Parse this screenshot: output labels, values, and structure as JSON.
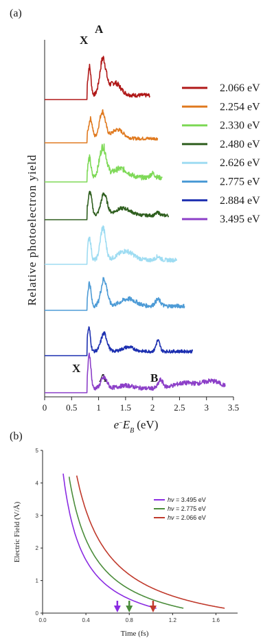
{
  "chart_data": [
    {
      "panel": "(a)",
      "type": "line",
      "xlabel_main": "e",
      "xlabel_sup": "−",
      "xlabel_var": "E",
      "xlabel_sub": "B",
      "xlabel_unit": "(eV)",
      "ylabel": "Relative photoelectron yield",
      "xlim": [
        0,
        3.5
      ],
      "x_ticks": [
        "0",
        "0.5",
        "1",
        "1.5",
        "2",
        "2.5",
        "3",
        "3.5"
      ],
      "x_tick_values": [
        0,
        0.5,
        1,
        1.5,
        2,
        2.5,
        3,
        3.5
      ],
      "peak_labels": {
        "X_top": "X",
        "A_top": "A",
        "X_bottom": "X",
        "A_bottom": "A",
        "B_bottom": "B"
      },
      "series": [
        {
          "name": "2.066 eV",
          "color": "#b01818",
          "xmax": 1.95,
          "noise": 0.05,
          "peaks": [
            [
              0.83,
              0.8,
              0.04
            ],
            [
              1.08,
              1.0,
              0.08
            ],
            [
              1.3,
              0.35,
              0.15
            ]
          ]
        },
        {
          "name": "2.254 eV",
          "color": "#e07a20",
          "xmax": 2.1,
          "noise": 0.04,
          "peaks": [
            [
              0.85,
              0.55,
              0.05
            ],
            [
              1.07,
              0.75,
              0.08
            ],
            [
              1.35,
              0.25,
              0.15
            ]
          ]
        },
        {
          "name": "2.330 eV",
          "color": "#7ed957",
          "xmax": 2.18,
          "noise": 0.06,
          "peaks": [
            [
              0.83,
              0.55,
              0.04
            ],
            [
              1.08,
              0.85,
              0.09
            ],
            [
              1.4,
              0.25,
              0.2
            ],
            [
              2.0,
              0.12,
              0.06
            ]
          ]
        },
        {
          "name": "2.480 eV",
          "color": "#2e5e1e",
          "xmax": 2.3,
          "noise": 0.04,
          "peaks": [
            [
              0.84,
              0.65,
              0.05
            ],
            [
              1.1,
              0.6,
              0.08
            ],
            [
              1.45,
              0.2,
              0.2
            ],
            [
              2.1,
              0.08,
              0.05
            ]
          ]
        },
        {
          "name": "2.626 eV",
          "color": "#9edcf2",
          "xmax": 2.45,
          "noise": 0.05,
          "peaks": [
            [
              0.83,
              0.65,
              0.04
            ],
            [
              1.08,
              0.9,
              0.07
            ],
            [
              1.5,
              0.25,
              0.2
            ],
            [
              2.1,
              0.1,
              0.06
            ]
          ]
        },
        {
          "name": "2.775 eV",
          "color": "#4d9bd6",
          "xmax": 2.6,
          "noise": 0.05,
          "peaks": [
            [
              0.83,
              0.65,
              0.04
            ],
            [
              1.1,
              0.75,
              0.08
            ],
            [
              1.55,
              0.2,
              0.2
            ],
            [
              2.1,
              0.18,
              0.07
            ]
          ]
        },
        {
          "name": "2.884 eV",
          "color": "#1c2fb0",
          "xmax": 2.75,
          "noise": 0.04,
          "peaks": [
            [
              0.82,
              0.65,
              0.04
            ],
            [
              1.1,
              0.5,
              0.08
            ],
            [
              1.55,
              0.12,
              0.15
            ],
            [
              2.1,
              0.3,
              0.05
            ]
          ]
        },
        {
          "name": "3.495 eV",
          "color": "#8c3fc8",
          "xmax": 3.35,
          "noise": 0.05,
          "peaks": [
            [
              0.83,
              0.95,
              0.04
            ],
            [
              1.1,
              0.3,
              0.08
            ],
            [
              1.5,
              0.08,
              0.2
            ],
            [
              2.15,
              0.22,
              0.06
            ],
            [
              2.6,
              0.15,
              0.3
            ],
            [
              3.1,
              0.2,
              0.25
            ]
          ]
        }
      ]
    },
    {
      "panel": "(b)",
      "type": "line",
      "xlabel": "Time (fs)",
      "ylabel": "Electric Field (V/Å)",
      "xlim": [
        0,
        1.8
      ],
      "ylim": [
        0,
        5
      ],
      "x_ticks": [
        "0.0",
        "0.4",
        "0.8",
        "1.2",
        "1.6"
      ],
      "x_tick_values": [
        0,
        0.4,
        0.8,
        1.2,
        1.6
      ],
      "y_ticks": [
        "0",
        "1",
        "2",
        "3",
        "4",
        "5"
      ],
      "y_tick_values": [
        0,
        1,
        2,
        3,
        4,
        5
      ],
      "legend_prefix": "hν",
      "series": [
        {
          "name": "= 3.495 eV",
          "color": "#8a2be2",
          "k": 0.96,
          "x_start": 0.19,
          "x_end": 1.05,
          "arrow_x": 0.69
        },
        {
          "name": "= 2.775 eV",
          "color": "#4a8c3a",
          "k": 1.22,
          "x_start": 0.245,
          "x_end": 1.3,
          "arrow_x": 0.8
        },
        {
          "name": "= 2.066 eV",
          "color": "#c0392b",
          "k": 1.58,
          "x_start": 0.315,
          "x_end": 1.68,
          "arrow_x": 1.02
        }
      ]
    }
  ]
}
